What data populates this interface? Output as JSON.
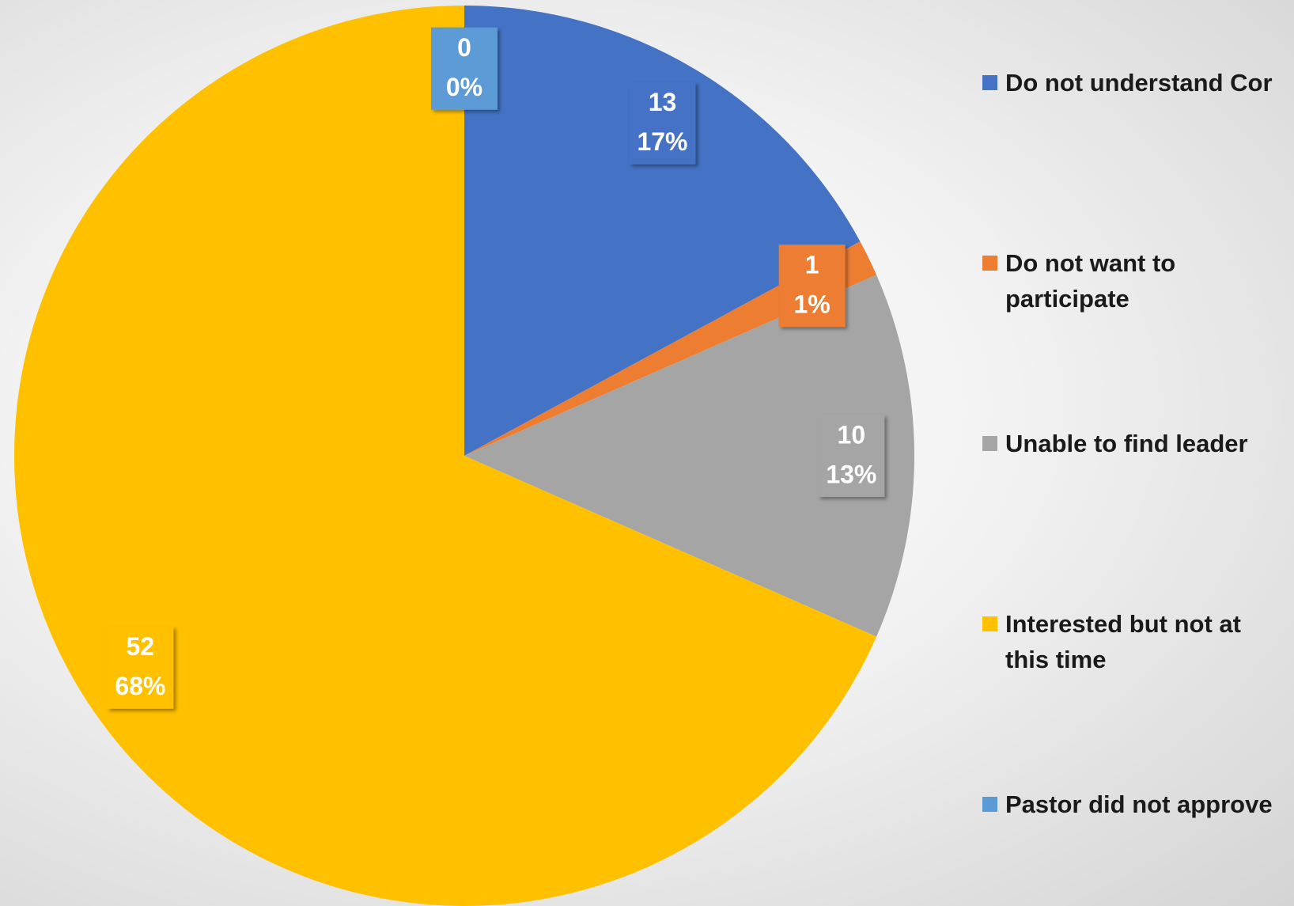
{
  "chart_data": {
    "type": "pie",
    "categories": [
      "Do not understand Cor",
      "Do not want to participate",
      "Unable to find leader",
      "Interested but not at this time",
      "Pastor did not approve"
    ],
    "values": [
      13,
      1,
      10,
      52,
      0
    ],
    "percent_labels": [
      "17%",
      "1%",
      "13%",
      "68%",
      "0%"
    ],
    "colors": [
      "#4472c4",
      "#ed7d31",
      "#a5a5a5",
      "#ffc000",
      "#5b9bd5"
    ],
    "legend": "right"
  }
}
